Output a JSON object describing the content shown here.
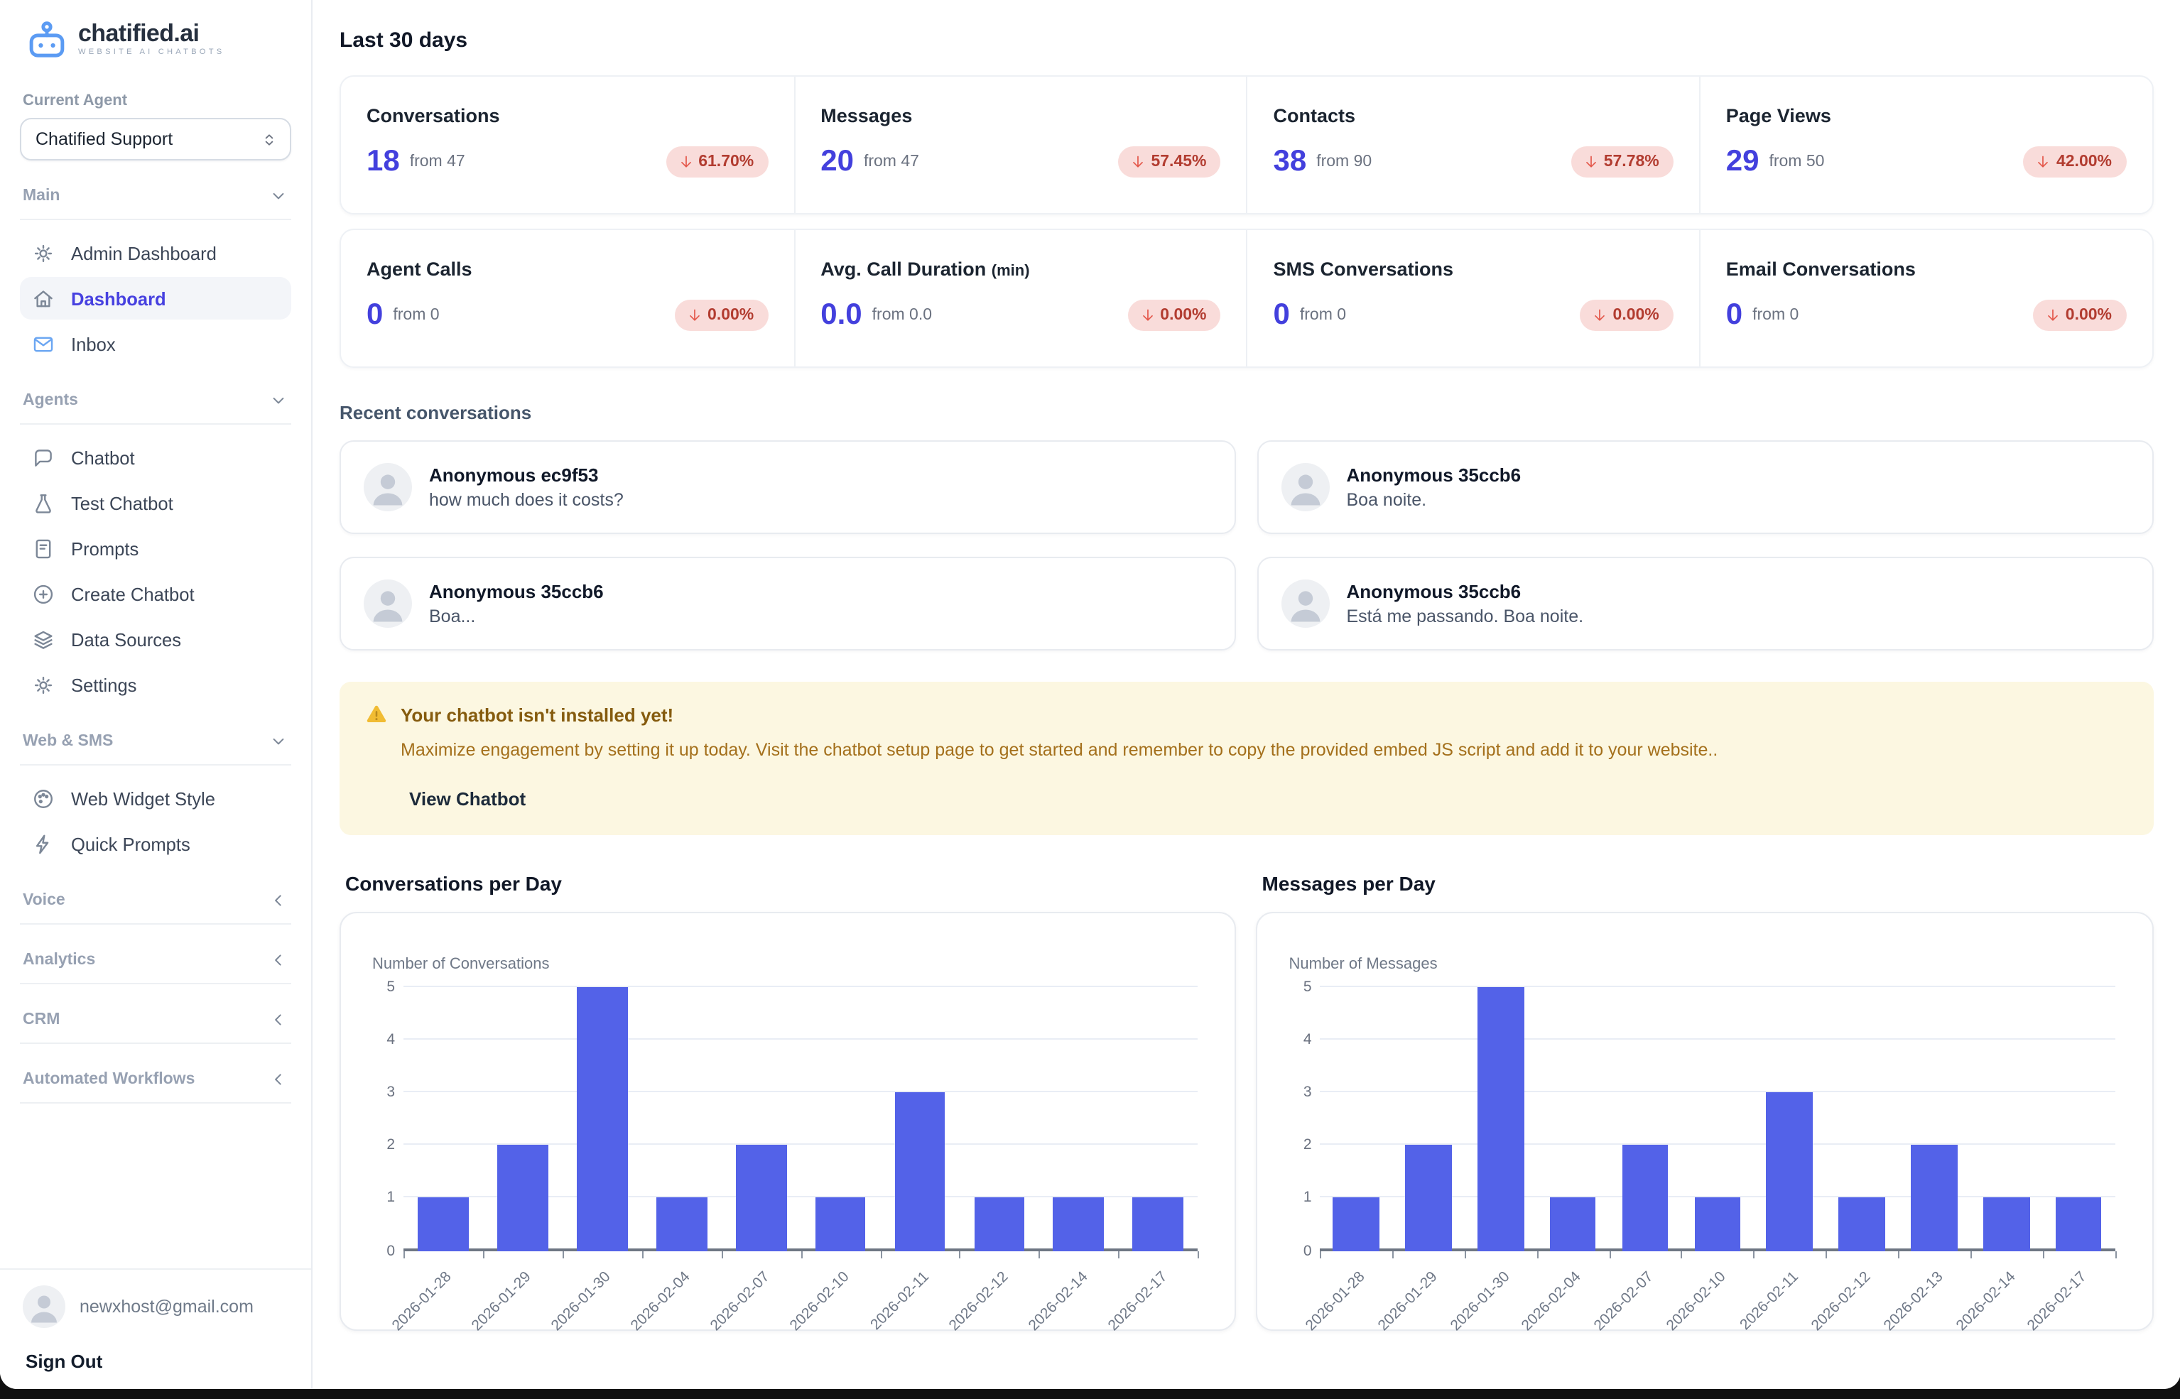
{
  "colors": {
    "accent": "#4741e0",
    "stat_number": "#4340dd",
    "bar_color": "#5362e8",
    "badge_bg": "#f9dcda",
    "badge_text": "#b23c30",
    "badge_arrow": "#e4574a",
    "banner_bg": "#fcf7e1",
    "logo_blue": "#5b9bf3"
  },
  "sidebar": {
    "logo": {
      "brand": "chatified.ai",
      "tagline": "WEBSITE AI CHATBOTS",
      "icon": "robot-logo-icon"
    },
    "current_agent_label": "Current Agent",
    "agent_select": {
      "value": "Chatified Support",
      "icon": "select-updown-icon"
    },
    "sections": [
      {
        "label": "Main",
        "state": "expanded",
        "items": [
          {
            "label": "Admin Dashboard",
            "icon": "gear-icon"
          },
          {
            "label": "Dashboard",
            "icon": "home-icon",
            "active": true
          },
          {
            "label": "Inbox",
            "icon": "mail-icon",
            "icon_color": "#6ba6f2"
          }
        ]
      },
      {
        "label": "Agents",
        "state": "expanded",
        "items": [
          {
            "label": "Chatbot",
            "icon": "chat-bubble-icon"
          },
          {
            "label": "Test Chatbot",
            "icon": "flask-icon"
          },
          {
            "label": "Prompts",
            "icon": "document-icon"
          },
          {
            "label": "Create Chatbot",
            "icon": "plus-circle-icon"
          },
          {
            "label": "Data Sources",
            "icon": "layers-icon"
          },
          {
            "label": "Settings",
            "icon": "gear-icon"
          }
        ]
      },
      {
        "label": "Web & SMS",
        "state": "expanded",
        "items": [
          {
            "label": "Web Widget Style",
            "icon": "palette-icon"
          },
          {
            "label": "Quick Prompts",
            "icon": "lightning-icon"
          }
        ]
      },
      {
        "label": "Voice",
        "state": "collapsed",
        "items": []
      },
      {
        "label": "Analytics",
        "state": "collapsed",
        "items": []
      },
      {
        "label": "CRM",
        "state": "collapsed",
        "items": []
      },
      {
        "label": "Automated Workflows",
        "state": "collapsed",
        "items": []
      }
    ],
    "user": {
      "email": "newxhost@gmail.com",
      "sign_out_label": "Sign Out"
    }
  },
  "main": {
    "period_title": "Last 30 days",
    "stat_rows": [
      [
        {
          "label": "Conversations",
          "value": "18",
          "from": "from 47",
          "change": "61.70%",
          "direction": "down"
        },
        {
          "label": "Messages",
          "value": "20",
          "from": "from 47",
          "change": "57.45%",
          "direction": "down"
        },
        {
          "label": "Contacts",
          "value": "38",
          "from": "from 90",
          "change": "57.78%",
          "direction": "down"
        },
        {
          "label": "Page Views",
          "value": "29",
          "from": "from 50",
          "change": "42.00%",
          "direction": "down"
        }
      ],
      [
        {
          "label": "Agent Calls",
          "value": "0",
          "from": "from 0",
          "change": "0.00%",
          "direction": "down"
        },
        {
          "label": "Avg. Call Duration",
          "label_suffix": "(min)",
          "value": "0.0",
          "from": "from 0.0",
          "change": "0.00%",
          "direction": "down"
        },
        {
          "label": "SMS Conversations",
          "value": "0",
          "from": "from 0",
          "change": "0.00%",
          "direction": "down"
        },
        {
          "label": "Email Conversations",
          "value": "0",
          "from": "from 0",
          "change": "0.00%",
          "direction": "down"
        }
      ]
    ],
    "recent": {
      "title": "Recent conversations",
      "conversations": [
        {
          "name": "Anonymous ec9f53",
          "message": "how much does it costs?"
        },
        {
          "name": "Anonymous 35ccb6",
          "message": "Boa noite."
        },
        {
          "name": "Anonymous 35ccb6",
          "message": "Boa..."
        },
        {
          "name": "Anonymous 35ccb6",
          "message": "Está me passando. Boa noite."
        }
      ]
    },
    "banner": {
      "icon": "warning-triangle-icon",
      "title": "Your chatbot isn't installed yet!",
      "body": "Maximize engagement by setting it up today. Visit the chatbot setup page to get started and remember to copy the provided embed JS script and add it to your website..",
      "action": "View Chatbot"
    }
  },
  "chart_data": [
    {
      "type": "bar",
      "title": "Conversations per Day",
      "ylabel": "Number of Conversations",
      "xlabel": "",
      "categories": [
        "2026-01-28",
        "2026-01-29",
        "2026-01-30",
        "2026-02-04",
        "2026-02-07",
        "2026-02-10",
        "2026-02-11",
        "2026-02-12",
        "2026-02-14",
        "2026-02-17"
      ],
      "values": [
        1,
        2,
        5,
        1,
        2,
        1,
        3,
        1,
        1,
        1
      ],
      "ylim": [
        0,
        5
      ],
      "yticks": [
        0,
        1,
        2,
        3,
        4,
        5
      ],
      "grid": true,
      "legend": "none",
      "bar_color": "#5362e8"
    },
    {
      "type": "bar",
      "title": "Messages per Day",
      "ylabel": "Number of Messages",
      "xlabel": "",
      "categories": [
        "2026-01-28",
        "2026-01-29",
        "2026-01-30",
        "2026-02-04",
        "2026-02-07",
        "2026-02-10",
        "2026-02-11",
        "2026-02-12",
        "2026-02-13",
        "2026-02-14",
        "2026-02-17"
      ],
      "values": [
        1,
        2,
        5,
        1,
        2,
        1,
        3,
        1,
        2,
        1,
        1
      ],
      "ylim": [
        0,
        5
      ],
      "yticks": [
        0,
        1,
        2,
        3,
        4,
        5
      ],
      "grid": true,
      "legend": "none",
      "bar_color": "#5362e8"
    }
  ]
}
